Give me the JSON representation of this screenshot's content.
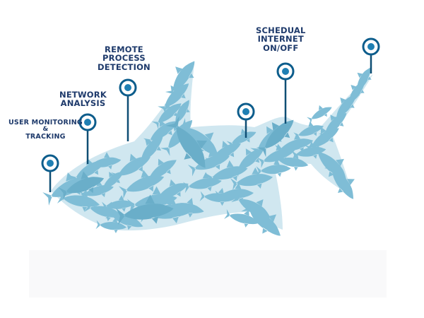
{
  "labels": {
    "user": {
      "line1": "User Monitoring",
      "line2": "&",
      "line3": "Tracking"
    },
    "network": {
      "line1": "Network",
      "line2": "Analysis"
    },
    "remote": {
      "line1": "Remote",
      "line2": "Process",
      "line3": "Detection"
    },
    "schedual": {
      "line1": "Schedual",
      "line2": "Internet",
      "line3": "On/Off"
    }
  },
  "colors": {
    "fish": "#7fbdd6",
    "fish_dark": "#6aaec9",
    "pin_ring": "#0d5d8c",
    "pin_dot": "#1f7fb3",
    "label_text": "#1e3a6b",
    "pole": "#0f4e74"
  },
  "icons": [
    "map-pin-icon",
    "shark-icon"
  ]
}
